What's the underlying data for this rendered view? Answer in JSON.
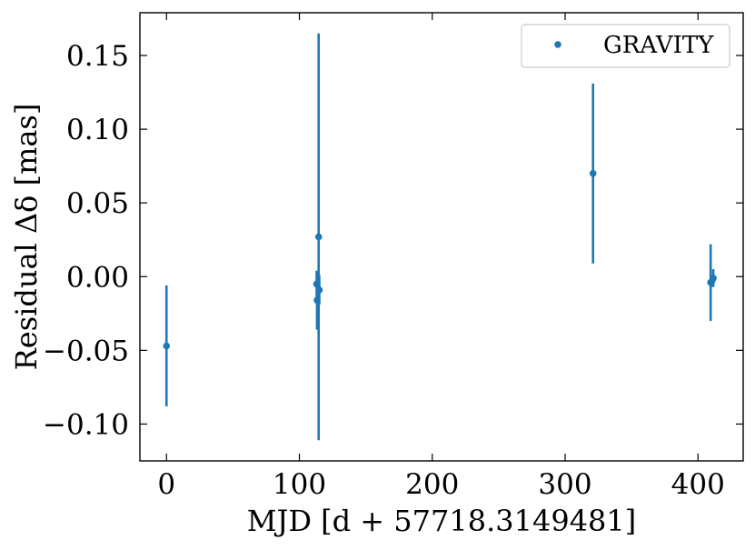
{
  "chart_data": {
    "type": "scatter",
    "title": "",
    "xlabel": "MJD [d + 57718.3149481]",
    "ylabel": "Residual Δδ [mas]",
    "xlim": [
      -20,
      434
    ],
    "ylim": [
      -0.125,
      0.179
    ],
    "x_ticks": [
      0,
      100,
      200,
      300,
      400
    ],
    "x_tick_labels": [
      "0",
      "100",
      "200",
      "300",
      "400"
    ],
    "y_ticks": [
      -0.1,
      -0.05,
      0.0,
      0.05,
      0.1,
      0.15
    ],
    "y_tick_labels": [
      "−0.10",
      "−0.05",
      "0.00",
      "0.05",
      "0.10",
      "0.15"
    ],
    "grid": false,
    "legend": "top-right",
    "color": "#1f77b4",
    "series": [
      {
        "name": "GRAVITY",
        "points": [
          {
            "x": 0.0,
            "y": -0.047,
            "err": 0.041
          },
          {
            "x": 113.0,
            "y": -0.005,
            "err": 0.009
          },
          {
            "x": 113.3,
            "y": -0.016,
            "err": 0.02
          },
          {
            "x": 114.5,
            "y": 0.027,
            "err": 0.138
          },
          {
            "x": 115.0,
            "y": -0.009,
            "err": 0.01
          },
          {
            "x": 321.0,
            "y": 0.07,
            "err": 0.061
          },
          {
            "x": 409.5,
            "y": -0.004,
            "err": 0.026
          },
          {
            "x": 410.5,
            "y": -0.003,
            "err": 0.004
          },
          {
            "x": 411.5,
            "y": -0.001,
            "err": 0.006
          }
        ]
      }
    ]
  }
}
